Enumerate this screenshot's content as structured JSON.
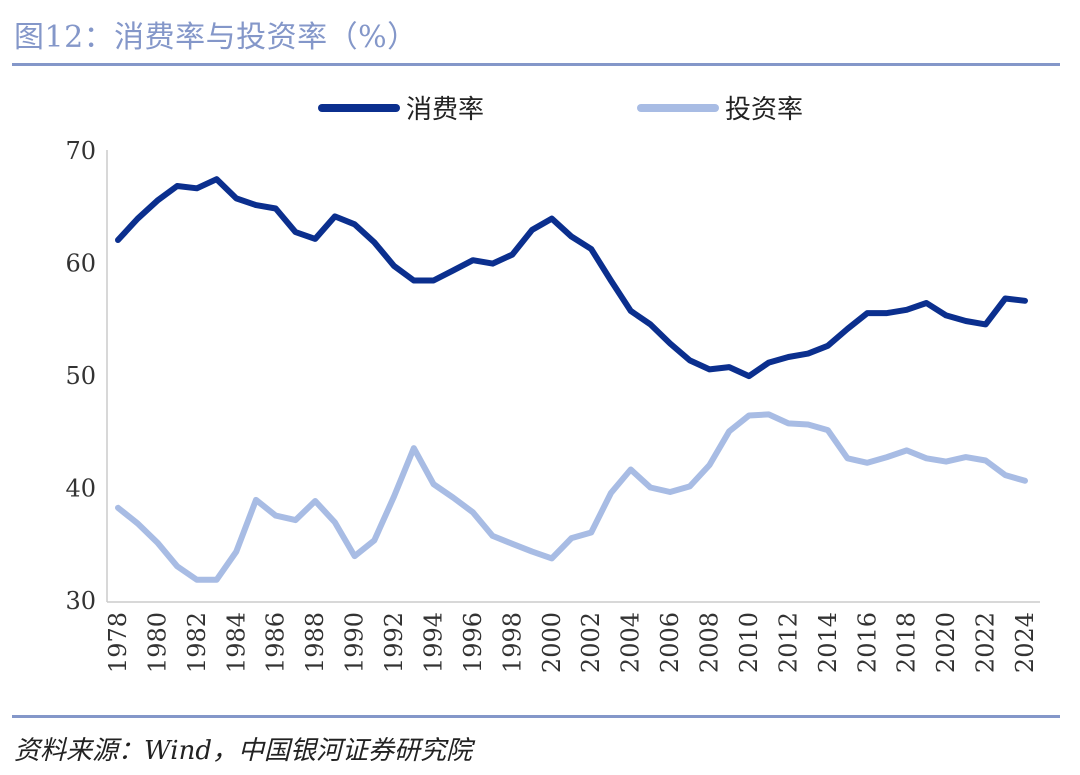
{
  "header": {
    "title": "图12：消费率与投资率（%）"
  },
  "footer": {
    "source": "资料来源：Wind，中国银河证券研究院"
  },
  "colors": {
    "consumption": "#0b2f8e",
    "investment": "#a8bce4",
    "rule": "#8497c9"
  },
  "chart_data": {
    "type": "line",
    "title": "图12：消费率与投资率（%）",
    "xlabel": "",
    "ylabel": "",
    "ylim": [
      30,
      70
    ],
    "yticks": [
      "70",
      "60",
      "50",
      "40",
      "30"
    ],
    "legend_position": "top-center",
    "grid": false,
    "x": [
      1978,
      1979,
      1980,
      1981,
      1982,
      1983,
      1984,
      1985,
      1986,
      1987,
      1988,
      1989,
      1990,
      1991,
      1992,
      1993,
      1994,
      1995,
      1996,
      1997,
      1998,
      1999,
      2000,
      2001,
      2002,
      2003,
      2004,
      2005,
      2006,
      2007,
      2008,
      2009,
      2010,
      2011,
      2012,
      2013,
      2014,
      2015,
      2016,
      2017,
      2018,
      2019,
      2020,
      2021,
      2022,
      2023,
      2024
    ],
    "xtick_labels": [
      "1978",
      "1980",
      "1982",
      "1984",
      "1986",
      "1988",
      "1990",
      "1992",
      "1994",
      "1996",
      "1998",
      "2000",
      "2002",
      "2004",
      "2006",
      "2008",
      "2010",
      "2012",
      "2014",
      "2016",
      "2018",
      "2020",
      "2022",
      "2024"
    ],
    "series": [
      {
        "name": "消费率",
        "values": [
          62.0,
          63.9,
          65.5,
          66.8,
          66.6,
          67.4,
          65.7,
          65.1,
          64.8,
          62.7,
          62.1,
          64.1,
          63.4,
          61.8,
          59.7,
          58.4,
          58.4,
          59.3,
          60.2,
          59.9,
          60.7,
          62.9,
          63.9,
          62.3,
          61.2,
          58.4,
          55.7,
          54.5,
          52.8,
          51.3,
          50.5,
          50.7,
          49.9,
          51.1,
          51.6,
          51.9,
          52.6,
          54.1,
          55.5,
          55.5,
          55.8,
          56.4,
          55.3,
          54.8,
          54.5,
          56.8,
          56.6
        ]
      },
      {
        "name": "投资率",
        "values": [
          38.2,
          36.8,
          35.1,
          33.0,
          31.8,
          31.8,
          34.3,
          38.9,
          37.5,
          37.1,
          38.8,
          36.9,
          33.9,
          35.3,
          39.2,
          43.5,
          40.3,
          39.1,
          37.8,
          35.7,
          35.0,
          34.3,
          33.7,
          35.5,
          36.0,
          39.5,
          41.6,
          40.0,
          39.6,
          40.1,
          42.0,
          45.0,
          46.4,
          46.5,
          45.7,
          45.6,
          45.1,
          42.6,
          42.2,
          42.7,
          43.3,
          42.6,
          42.3,
          42.7,
          42.4,
          41.1,
          40.6
        ]
      }
    ]
  }
}
